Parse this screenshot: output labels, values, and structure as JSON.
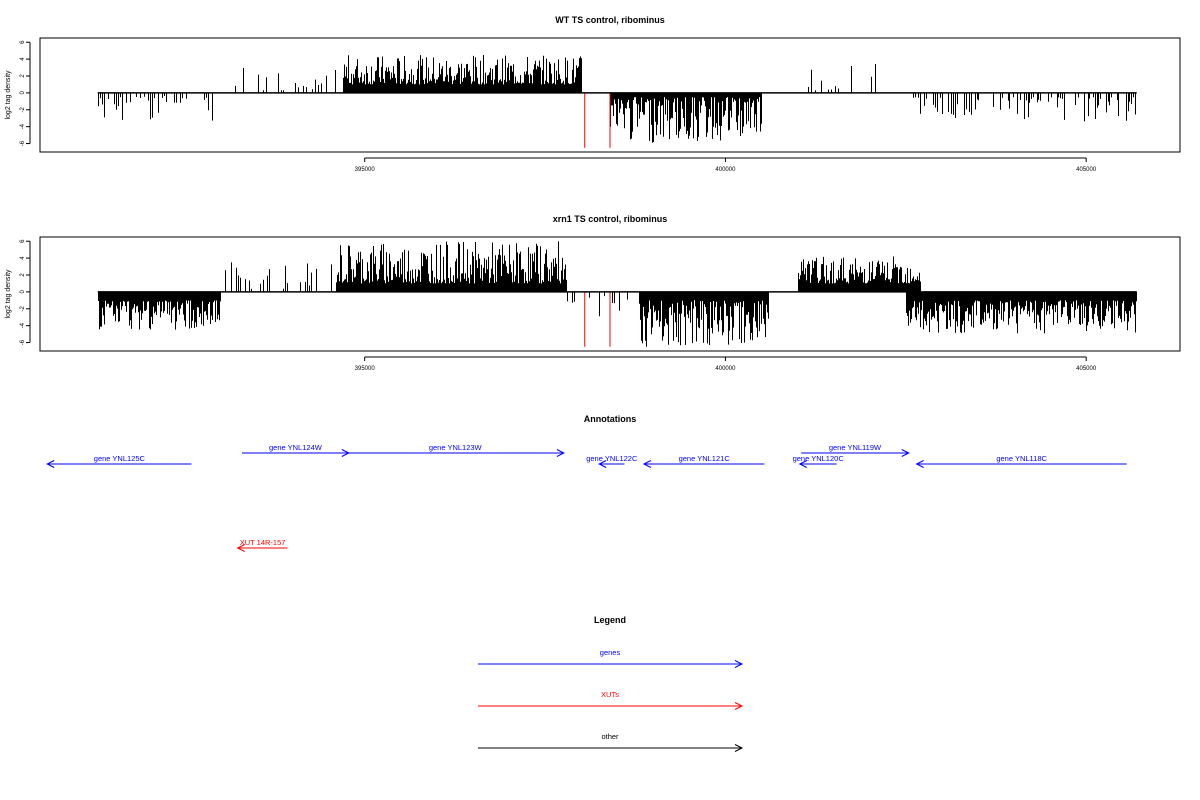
{
  "chart_data": [
    {
      "type": "bar",
      "title": "WT TS control, ribominus",
      "xlabel": "",
      "ylabel": "log2 tag density",
      "xlim": [
        390500,
        406300
      ],
      "ylim": [
        -7,
        6.5
      ],
      "yticks": [
        6,
        4,
        2,
        0,
        -2,
        -4,
        -6
      ],
      "xticks": [
        395000,
        400000,
        405000
      ],
      "xtick_labels": [
        "395000",
        "400000",
        "405000"
      ],
      "baseline_range": [
        391300,
        405700
      ],
      "colors": {
        "bars": "#000000",
        "markers": "#ff0000"
      },
      "regions": [
        {
          "strand": "-",
          "start": 391300,
          "end": 392900,
          "min": 0.3,
          "max": 3.5,
          "density": 0.5
        },
        {
          "strand": "+",
          "start": 393200,
          "end": 395900,
          "min": 0.3,
          "max": 3.0,
          "density": 0.35
        },
        {
          "strand": "+",
          "start": 394700,
          "end": 398000,
          "min": 1.0,
          "max": 4.5,
          "density": 1.0
        },
        {
          "strand": "-",
          "start": 398400,
          "end": 400500,
          "min": 0.5,
          "max": 6.0,
          "density": 1.0
        },
        {
          "strand": "+",
          "start": 401100,
          "end": 402500,
          "min": 0.3,
          "max": 3.5,
          "density": 0.3
        },
        {
          "strand": "-",
          "start": 402600,
          "end": 405700,
          "min": 0.5,
          "max": 3.5,
          "density": 0.55
        }
      ],
      "markers": [
        {
          "x": 398050,
          "y": -6.5
        },
        {
          "x": 398400,
          "y": -6.5
        }
      ]
    },
    {
      "type": "bar",
      "title": "xrn1 TS control, ribominus",
      "xlabel": "",
      "ylabel": "log2 tag density",
      "xlim": [
        390500,
        406300
      ],
      "ylim": [
        -7,
        6.5
      ],
      "yticks": [
        6,
        4,
        2,
        0,
        -2,
        -4,
        -6
      ],
      "xticks": [
        395000,
        400000,
        405000
      ],
      "xtick_labels": [
        "395000",
        "400000",
        "405000"
      ],
      "baseline_range": [
        391300,
        405700
      ],
      "colors": {
        "bars": "#000000",
        "markers": "#ff0000"
      },
      "regions": [
        {
          "strand": "-",
          "start": 391300,
          "end": 393000,
          "min": 1.0,
          "max": 4.5,
          "density": 1.0
        },
        {
          "strand": "+",
          "start": 393000,
          "end": 394600,
          "min": 0.3,
          "max": 4.0,
          "density": 0.45
        },
        {
          "strand": "+",
          "start": 394600,
          "end": 397800,
          "min": 1.0,
          "max": 6.0,
          "density": 1.0
        },
        {
          "strand": "-",
          "start": 397800,
          "end": 398800,
          "min": 0.5,
          "max": 3.0,
          "density": 0.4
        },
        {
          "strand": "-",
          "start": 398800,
          "end": 400600,
          "min": 1.0,
          "max": 6.5,
          "density": 1.0
        },
        {
          "strand": "+",
          "start": 401000,
          "end": 402700,
          "min": 1.0,
          "max": 4.2,
          "density": 1.0
        },
        {
          "strand": "-",
          "start": 402500,
          "end": 405700,
          "min": 1.0,
          "max": 5.0,
          "density": 1.0
        }
      ],
      "markers": [
        {
          "x": 398050,
          "y": -6.5
        },
        {
          "x": 398400,
          "y": -6.5
        }
      ]
    }
  ],
  "annotations": {
    "title": "Annotations",
    "features": [
      {
        "label": "gene YNL125C",
        "strand": "-",
        "start": 390600,
        "end": 392600,
        "row": 1,
        "kind": "gene"
      },
      {
        "label": "gene YNL124W",
        "strand": "+",
        "start": 393300,
        "end": 394780,
        "row": 0,
        "kind": "gene"
      },
      {
        "label": "gene YNL123W",
        "strand": "+",
        "start": 394750,
        "end": 397760,
        "row": 0,
        "kind": "gene"
      },
      {
        "label": "gene YNL122C",
        "strand": "-",
        "start": 398250,
        "end": 398600,
        "row": 1,
        "kind": "gene"
      },
      {
        "label": "gene YNL121C",
        "strand": "-",
        "start": 398870,
        "end": 400540,
        "row": 1,
        "kind": "gene"
      },
      {
        "label": "gene YNL120C",
        "strand": "-",
        "start": 401030,
        "end": 401540,
        "row": 1,
        "kind": "gene"
      },
      {
        "label": "gene YNL119W",
        "strand": "+",
        "start": 401050,
        "end": 402540,
        "row": 0,
        "kind": "gene"
      },
      {
        "label": "gene YNL118C",
        "strand": "-",
        "start": 402650,
        "end": 405560,
        "row": 1,
        "kind": "gene"
      },
      {
        "label": "XUT 14R-157",
        "strand": "-",
        "start": 393240,
        "end": 393930,
        "row": 2,
        "kind": "xut"
      }
    ]
  },
  "legend": {
    "title": "Legend",
    "items": [
      {
        "label": "genes",
        "color": "#0000ff"
      },
      {
        "label": "XUTs",
        "color": "#ff0000"
      },
      {
        "label": "other",
        "color": "#000000"
      }
    ]
  }
}
